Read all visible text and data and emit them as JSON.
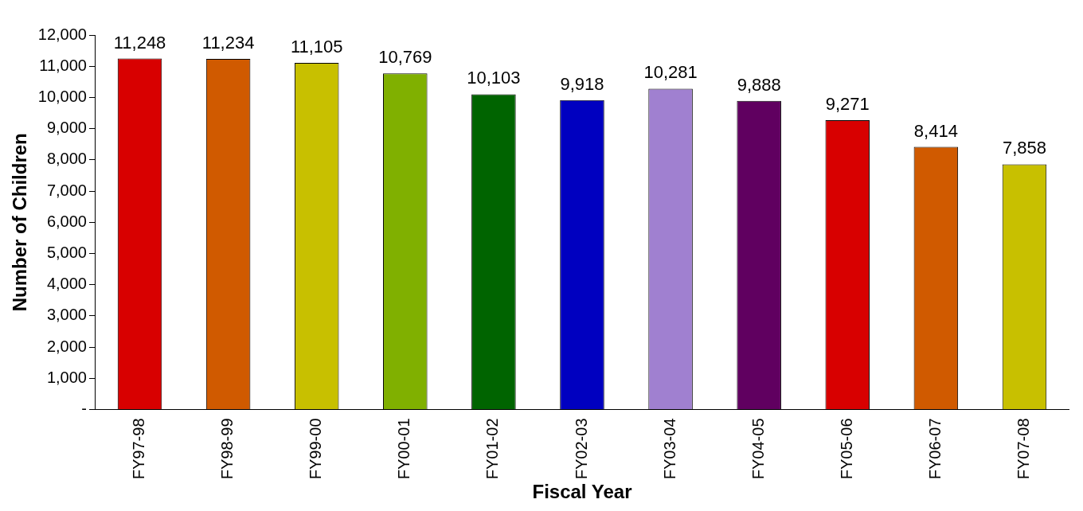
{
  "chart_data": {
    "type": "bar",
    "xlabel": "Fiscal Year",
    "ylabel": "Number of Children",
    "categories": [
      "FY97-98",
      "FY98-99",
      "FY99-00",
      "FY00-01",
      "FY01-02",
      "FY02-03",
      "FY03-04",
      "FY04-05",
      "FY05-06",
      "FY06-07",
      "FY07-08"
    ],
    "values": [
      11248,
      11234,
      11105,
      10769,
      10103,
      9918,
      10281,
      9888,
      9271,
      8414,
      7858
    ],
    "colors": [
      "#d80000",
      "#d05a00",
      "#c8c000",
      "#80b000",
      "#006400",
      "#0000c0",
      "#a080d0",
      "#600060",
      "#d80000",
      "#d05a00",
      "#c8c000"
    ],
    "ylim": [
      0,
      12000
    ],
    "yticks": [
      {
        "value": 0,
        "label": "-"
      },
      {
        "value": 1000,
        "label": "1,000"
      },
      {
        "value": 2000,
        "label": "2,000"
      },
      {
        "value": 3000,
        "label": "3,000"
      },
      {
        "value": 4000,
        "label": "4,000"
      },
      {
        "value": 5000,
        "label": "5,000"
      },
      {
        "value": 6000,
        "label": "6,000"
      },
      {
        "value": 7000,
        "label": "7,000"
      },
      {
        "value": 8000,
        "label": "8,000"
      },
      {
        "value": 9000,
        "label": "9,000"
      },
      {
        "value": 10000,
        "label": "10,000"
      },
      {
        "value": 11000,
        "label": "11,000"
      },
      {
        "value": 12000,
        "label": "12,000"
      }
    ],
    "value_labels": [
      "11,248",
      "11,234",
      "11,105",
      "10,769",
      "10,103",
      "9,918",
      "10,281",
      "9,888",
      "9,271",
      "8,414",
      "7,858"
    ],
    "grid": false,
    "legend": false
  }
}
